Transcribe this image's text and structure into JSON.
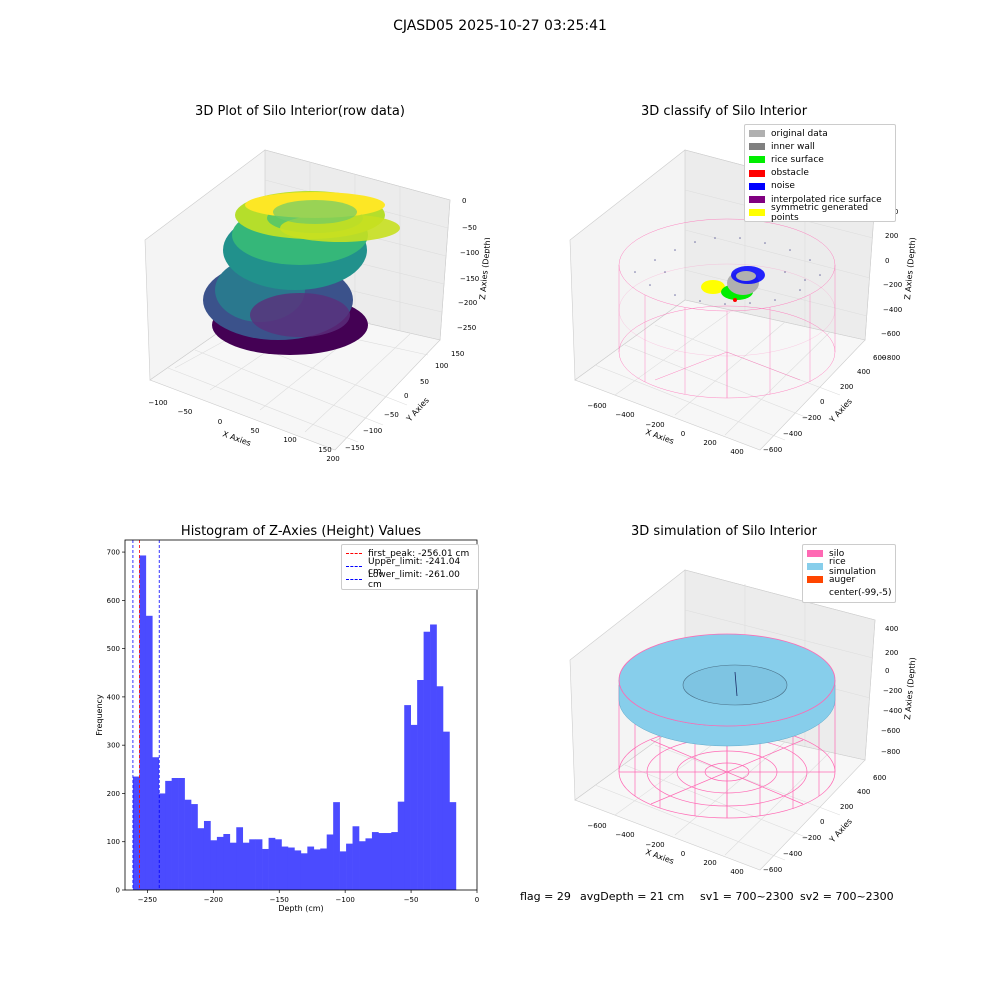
{
  "suptitle": "CJASD05 2025-10-27 03:25:41",
  "panels": {
    "raw": {
      "title": "3D Plot of Silo Interior(row data)",
      "xlabel": "X Axies",
      "ylabel": "Y Axies",
      "zlabel": "Z Axies (Depth)",
      "xticks": [
        "−100",
        "−50",
        "0",
        "50",
        "100",
        "150",
        "200"
      ],
      "yticks": [
        "−150",
        "−100",
        "−50",
        "0",
        "50",
        "100",
        "150"
      ],
      "zticks": [
        "0",
        "−50",
        "−100",
        "−150",
        "−200",
        "−250"
      ]
    },
    "classify": {
      "title": "3D classify of Silo Interior",
      "xlabel": "X Axies",
      "ylabel": "Y Axies",
      "zlabel": "Z Axies (Depth)",
      "xticks": [
        "−600",
        "−400",
        "−200",
        "0",
        "200",
        "400"
      ],
      "yticks": [
        "−600",
        "−400",
        "−200",
        "0",
        "200",
        "400",
        "600"
      ],
      "zticks": [
        "400",
        "200",
        "0",
        "−200",
        "−400",
        "−600",
        "−800"
      ],
      "legend": [
        {
          "label": "original data",
          "color": "#b0b0b0"
        },
        {
          "label": "inner wall",
          "color": "#808080"
        },
        {
          "label": "rice surface",
          "color": "#00ee00"
        },
        {
          "label": "obstacle",
          "color": "#ff0000"
        },
        {
          "label": "noise",
          "color": "#0000ff"
        },
        {
          "label": "interpolated rice surface",
          "color": "#800080"
        },
        {
          "label": "symmetric generated points",
          "color": "#ffff00"
        }
      ]
    },
    "sim": {
      "title": "3D simulation of Silo Interior",
      "xlabel": "X Axies",
      "ylabel": "Y Axies",
      "zlabel": "Z Axies (Depth)",
      "xticks": [
        "−600",
        "−400",
        "−200",
        "0",
        "200",
        "400"
      ],
      "yticks": [
        "−600",
        "−400",
        "−200",
        "0",
        "200",
        "400",
        "600"
      ],
      "zticks": [
        "400",
        "200",
        "0",
        "−200",
        "−400",
        "−600",
        "−800"
      ],
      "legend": [
        {
          "label": "silo",
          "color": "#ff69b4"
        },
        {
          "label": "rice simulation",
          "color": "#87ceeb"
        },
        {
          "label": "auger",
          "color": "#ff4500"
        },
        {
          "label": "center(-99,-5)",
          "color": "#ffffff"
        }
      ]
    }
  },
  "chart_data": {
    "type": "bar",
    "title": "Histogram of Z-Axies (Height) Values",
    "xlabel": "Depth (cm)",
    "ylabel": "Frequency",
    "xlim": [
      -267,
      0
    ],
    "ylim": [
      0,
      725
    ],
    "xticks": [
      -250,
      -200,
      -150,
      -100,
      -50,
      0
    ],
    "yticks": [
      0,
      100,
      200,
      300,
      400,
      500,
      600,
      700
    ],
    "bin_start": -261,
    "bin_width": 4.9,
    "values": [
      235,
      693,
      568,
      275,
      200,
      226,
      232,
      232,
      187,
      178,
      128,
      143,
      103,
      110,
      116,
      98,
      130,
      98,
      105,
      105,
      85,
      108,
      105,
      90,
      88,
      82,
      76,
      90,
      84,
      86,
      115,
      182,
      80,
      96,
      132,
      101,
      107,
      120,
      118,
      118,
      120,
      183,
      383,
      342,
      435,
      535,
      550,
      422,
      328,
      182
    ],
    "lines": [
      {
        "label": "first_peak: -256.01 cm",
        "x": -256.01,
        "color": "#ff0000"
      },
      {
        "label": "Upper_limit: -241.04 cm",
        "x": -241.04,
        "color": "#0000ff"
      },
      {
        "label": "Lower_limit: -261.00 cm",
        "x": -261.0,
        "color": "#0000ff"
      }
    ],
    "bar_color": "#4b4bff",
    "legend_position": "top-right"
  },
  "footer": {
    "flag": "flag = 29",
    "avg": "avgDepth = 21 cm",
    "sv1": "sv1 = 700~2300",
    "sv2": "sv2 = 700~2300"
  }
}
